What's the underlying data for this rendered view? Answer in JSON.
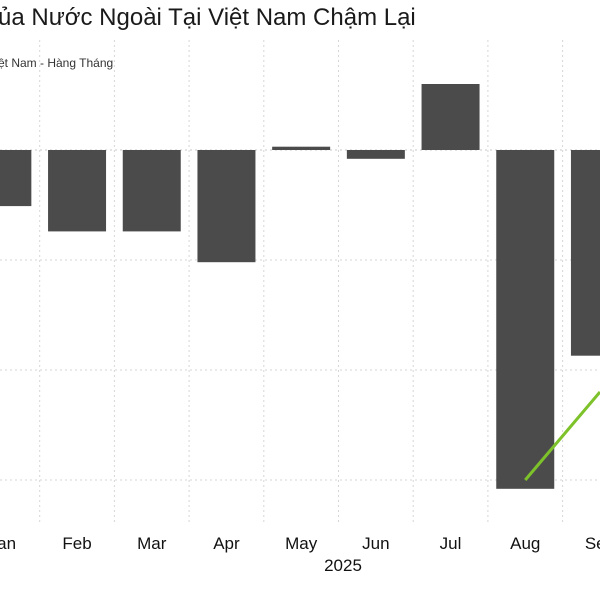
{
  "header": {
    "title": "ủa Nước Ngoài Tại Việt Nam Chậm Lại",
    "subtitle": "ệt Nam - Hàng Tháng"
  },
  "chart_data": {
    "type": "bar",
    "title": "ủa Nước Ngoài Tại Việt Nam Chậm Lại",
    "subtitle": "ệt Nam - Hàng Tháng",
    "xlabel": "2025",
    "ylabel": "",
    "categories": [
      "Jan",
      "Feb",
      "Mar",
      "Apr",
      "May",
      "Jun",
      "Jul",
      "Aug",
      "Sep"
    ],
    "values": [
      -0.51,
      -0.74,
      -0.74,
      -1.02,
      0.03,
      -0.08,
      0.6,
      -3.08,
      -1.87
    ],
    "ylim": [
      -3.3,
      1.05
    ],
    "y_gridlines": [
      0,
      -1,
      -2,
      -3
    ],
    "grid": true,
    "bar_color": "#4b4b4b",
    "overlay_line": {
      "color": "#7dc22a",
      "points": [
        {
          "x": "Aug",
          "y": -3.0
        },
        {
          "x": "Sep",
          "y": -2.2
        }
      ]
    }
  }
}
